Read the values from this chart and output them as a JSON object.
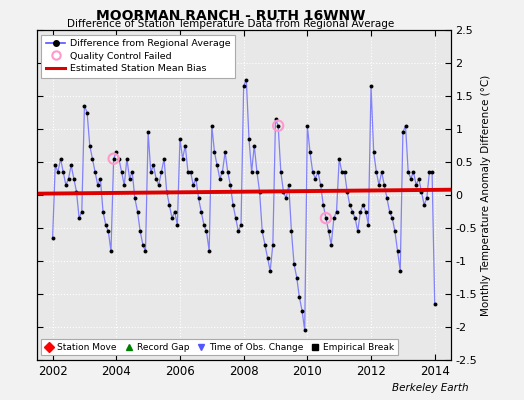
{
  "title": "MOORMAN RANCH - RUTH 16WNW",
  "subtitle": "Difference of Station Temperature Data from Regional Average",
  "ylabel": "Monthly Temperature Anomaly Difference (°C)",
  "xlabel_bottom": "Berkeley Earth",
  "xlim": [
    2001.5,
    2014.5
  ],
  "ylim": [
    -2.5,
    2.5
  ],
  "yticks": [
    -2.5,
    -2,
    -1.5,
    -1,
    -0.5,
    0,
    0.5,
    1,
    1.5,
    2,
    2.5
  ],
  "xticks": [
    2002,
    2004,
    2006,
    2008,
    2010,
    2012,
    2014
  ],
  "bias_value": 0.05,
  "line_color": "#5555ff",
  "dot_color": "#000000",
  "bias_color": "#dd0000",
  "qc_color": "#ff99cc",
  "plot_bg": "#e8e8e8",
  "fig_bg": "#f2f2f2",
  "grid_color": "#ffffff",
  "times": [
    2002.0,
    2002.083,
    2002.167,
    2002.25,
    2002.333,
    2002.417,
    2002.5,
    2002.583,
    2002.667,
    2002.75,
    2002.833,
    2002.917,
    2003.0,
    2003.083,
    2003.167,
    2003.25,
    2003.333,
    2003.417,
    2003.5,
    2003.583,
    2003.667,
    2003.75,
    2003.833,
    2003.917,
    2004.0,
    2004.083,
    2004.167,
    2004.25,
    2004.333,
    2004.417,
    2004.5,
    2004.583,
    2004.667,
    2004.75,
    2004.833,
    2004.917,
    2005.0,
    2005.083,
    2005.167,
    2005.25,
    2005.333,
    2005.417,
    2005.5,
    2005.583,
    2005.667,
    2005.75,
    2005.833,
    2005.917,
    2006.0,
    2006.083,
    2006.167,
    2006.25,
    2006.333,
    2006.417,
    2006.5,
    2006.583,
    2006.667,
    2006.75,
    2006.833,
    2006.917,
    2007.0,
    2007.083,
    2007.167,
    2007.25,
    2007.333,
    2007.417,
    2007.5,
    2007.583,
    2007.667,
    2007.75,
    2007.833,
    2007.917,
    2008.0,
    2008.083,
    2008.167,
    2008.25,
    2008.333,
    2008.417,
    2008.5,
    2008.583,
    2008.667,
    2008.75,
    2008.833,
    2008.917,
    2009.0,
    2009.083,
    2009.167,
    2009.25,
    2009.333,
    2009.417,
    2009.5,
    2009.583,
    2009.667,
    2009.75,
    2009.833,
    2009.917,
    2010.0,
    2010.083,
    2010.167,
    2010.25,
    2010.333,
    2010.417,
    2010.5,
    2010.583,
    2010.667,
    2010.75,
    2010.833,
    2010.917,
    2011.0,
    2011.083,
    2011.167,
    2011.25,
    2011.333,
    2011.417,
    2011.5,
    2011.583,
    2011.667,
    2011.75,
    2011.833,
    2011.917,
    2012.0,
    2012.083,
    2012.167,
    2012.25,
    2012.333,
    2012.417,
    2012.5,
    2012.583,
    2012.667,
    2012.75,
    2012.833,
    2012.917,
    2013.0,
    2013.083,
    2013.167,
    2013.25,
    2013.333,
    2013.417,
    2013.5,
    2013.583,
    2013.667,
    2013.75,
    2013.833,
    2013.917,
    2014.0
  ],
  "values": [
    -0.65,
    0.45,
    0.35,
    0.55,
    0.35,
    0.15,
    0.25,
    0.45,
    0.25,
    0.05,
    -0.35,
    -0.25,
    1.35,
    1.25,
    0.75,
    0.55,
    0.35,
    0.15,
    0.25,
    -0.25,
    -0.45,
    -0.55,
    -0.85,
    0.55,
    0.65,
    0.55,
    0.35,
    0.15,
    0.55,
    0.25,
    0.35,
    -0.05,
    -0.25,
    -0.55,
    -0.75,
    -0.85,
    0.95,
    0.35,
    0.45,
    0.25,
    0.15,
    0.35,
    0.55,
    0.05,
    -0.15,
    -0.35,
    -0.25,
    -0.45,
    0.85,
    0.55,
    0.75,
    0.35,
    0.35,
    0.15,
    0.25,
    -0.05,
    -0.25,
    -0.45,
    -0.55,
    -0.85,
    1.05,
    0.65,
    0.45,
    0.25,
    0.35,
    0.65,
    0.35,
    0.15,
    -0.15,
    -0.35,
    -0.55,
    -0.45,
    1.65,
    1.75,
    0.85,
    0.35,
    0.75,
    0.35,
    0.05,
    -0.55,
    -0.75,
    -0.95,
    -1.15,
    -0.75,
    1.15,
    1.05,
    0.35,
    0.05,
    -0.05,
    0.15,
    -0.55,
    -1.05,
    -1.25,
    -1.55,
    -1.75,
    -2.05,
    1.05,
    0.65,
    0.35,
    0.25,
    0.35,
    0.15,
    -0.15,
    -0.35,
    -0.55,
    -0.75,
    -0.35,
    -0.25,
    0.55,
    0.35,
    0.35,
    0.05,
    -0.15,
    -0.25,
    -0.35,
    -0.55,
    -0.25,
    -0.15,
    -0.25,
    -0.45,
    1.65,
    0.65,
    0.35,
    0.15,
    0.35,
    0.15,
    -0.05,
    -0.25,
    -0.35,
    -0.55,
    -0.85,
    -1.15,
    0.95,
    1.05,
    0.35,
    0.25,
    0.35,
    0.15,
    0.25,
    0.05,
    -0.15,
    -0.05,
    0.35,
    0.35,
    -1.65
  ],
  "qc_failed_times": [
    2003.917,
    2009.083,
    2010.583
  ],
  "qc_failed_values": [
    0.55,
    1.05,
    -0.35
  ]
}
